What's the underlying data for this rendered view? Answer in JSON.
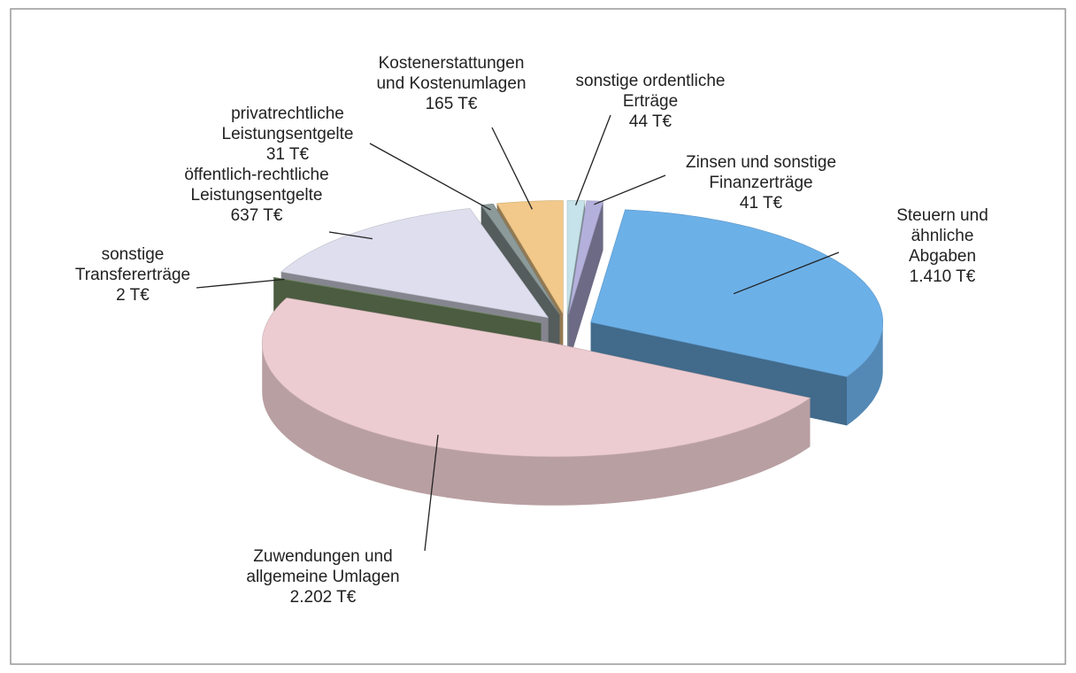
{
  "chart_data": {
    "type": "pie3d",
    "categories": [
      "sonstige ordentliche\nErträge",
      "Zinsen und sonstige\nFinanzerträge",
      "Steuern und\nähnliche Abgaben",
      "Zuwendungen und\nallgemeine Umlagen",
      "sonstige\nTransfererträge",
      "öffentlich-rechtliche\nLeistungsentgelte",
      "privatrechtliche\nLeistungsentgelte",
      "Kostenerstattungen\nund Kostenumlagen"
    ],
    "values": [
      44,
      41,
      1410,
      2202,
      2,
      637,
      31,
      165
    ],
    "value_labels": [
      "44 T€",
      "41 T€",
      "1.410 T€",
      "2.202 T€",
      "2 T€",
      "637 T€",
      "31 T€",
      "165 T€"
    ],
    "colors": [
      "#c6e2ea",
      "#b4b0dc",
      "#6cb0e8",
      "#ecccd0",
      "#7d9a6c",
      "#dedeee",
      "#8c9a9a",
      "#f2c98a"
    ]
  }
}
